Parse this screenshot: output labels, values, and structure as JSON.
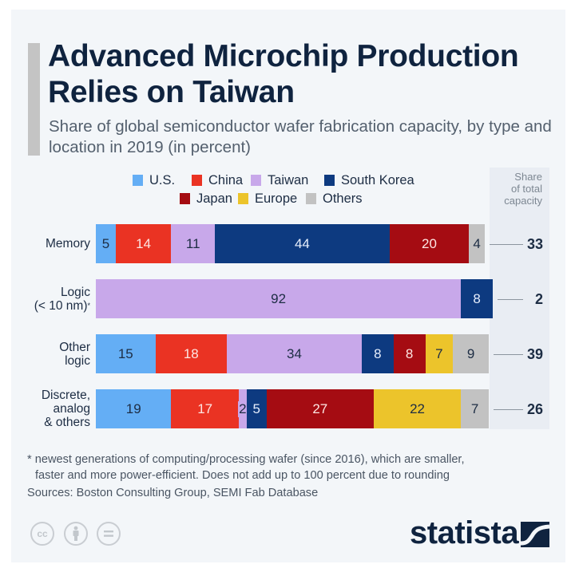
{
  "header": {
    "title": "Advanced Microchip Production Relies on Taiwan",
    "subtitle": "Share of global semiconductor wafer fabrication capacity, by type and location in 2019 (in percent)"
  },
  "chart_data": {
    "type": "bar",
    "orientation": "horizontal",
    "stacked": true,
    "title": "Advanced Microchip Production Relies on Taiwan",
    "subtitle": "Share of global semiconductor wafer fabrication capacity, by type and location in 2019 (in percent)",
    "categories": [
      "Memory",
      "Logic (< 10 nm)*",
      "Other logic",
      "Discrete, analog & others"
    ],
    "category_lines": [
      [
        "Memory"
      ],
      [
        "Logic",
        "(< 10 nm)*"
      ],
      [
        "Other",
        "logic"
      ],
      [
        "Discrete,",
        "analog",
        "& others"
      ]
    ],
    "series": [
      {
        "name": "U.S.",
        "color": "#64aef5",
        "text_color": "#1d2d44",
        "values": [
          5,
          null,
          15,
          19
        ]
      },
      {
        "name": "China",
        "color": "#ea3323",
        "text_color": "#fde6e3",
        "values": [
          14,
          null,
          18,
          17
        ]
      },
      {
        "name": "Taiwan",
        "color": "#c8a8ea",
        "text_color": "#1d2d44",
        "values": [
          11,
          92,
          34,
          2
        ]
      },
      {
        "name": "South Korea",
        "color": "#0d3a80",
        "text_color": "#e6eefc",
        "values": [
          44,
          8,
          8,
          5
        ]
      },
      {
        "name": "Japan",
        "color": "#a50c12",
        "text_color": "#fde6e3",
        "values": [
          20,
          null,
          8,
          27
        ]
      },
      {
        "name": "Europe",
        "color": "#ecc42b",
        "text_color": "#1d2d44",
        "values": [
          null,
          null,
          7,
          22
        ]
      },
      {
        "name": "Others",
        "color": "#c2c2c2",
        "text_color": "#1d2d44",
        "values": [
          4,
          null,
          9,
          7
        ]
      }
    ],
    "share_of_total": {
      "header": [
        "Share",
        "of total",
        "capacity"
      ],
      "values": [
        33,
        2,
        39,
        26
      ]
    },
    "xlim": [
      0,
      100
    ],
    "legend_position": "top",
    "grid": false
  },
  "footer": {
    "footnote_line1": "* newest generations of computing/processing wafer (since 2016), which are smaller,",
    "footnote_line2": "faster and more power-efficient. Does not add up to 100 percent due to rounding",
    "sources": "Sources: Boston Consulting Group, SEMI Fab Database",
    "license_icons": [
      "cc-icon",
      "by-icon",
      "nd-icon"
    ],
    "cc_label": "cc",
    "logo_text": "statista"
  },
  "colors": {
    "panel_bg": "#f3f6f9",
    "title": "#0f233f",
    "accent_bar": "#c4c4c4"
  }
}
